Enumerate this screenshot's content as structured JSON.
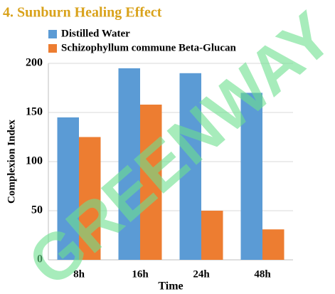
{
  "chart_data": {
    "type": "bar",
    "title": "4. Sunburn Healing Effect",
    "x_label": "Time",
    "y_label": "Complexion Index",
    "categories": [
      "8h",
      "16h",
      "24h",
      "48h"
    ],
    "series": [
      {
        "name": "Distilled Water",
        "color": "#5b9bd5",
        "values": [
          145,
          195,
          190,
          170
        ]
      },
      {
        "name": "Schizophyllum commune Beta-Glucan",
        "color": "#ed7d31",
        "values": [
          125,
          158,
          50,
          31
        ]
      }
    ],
    "ylim": [
      0,
      200
    ],
    "yticks": [
      0,
      50,
      100,
      150,
      200
    ],
    "grid": true,
    "watermark": "GREENWAY"
  }
}
